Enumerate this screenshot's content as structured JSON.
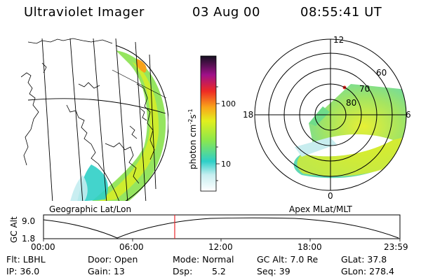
{
  "header": {
    "title": "Ultraviolet Imager",
    "date": "03 Aug 00",
    "time": "08:55:41  UT"
  },
  "panels": {
    "left_caption": "Geographic Lat/Lon",
    "right_caption": "Apex MLat/MLT"
  },
  "colorbar": {
    "label": "photon cm",
    "label_sup1": "-2",
    "label_s": "s",
    "label_sup2": "-1",
    "ticks": [
      "100",
      "10"
    ]
  },
  "polar_plot": {
    "mlt_labels": [
      "12",
      "18",
      "6",
      "0"
    ],
    "mlat_labels": [
      "60",
      "70",
      "80"
    ]
  },
  "altitude_panel": {
    "ylabel": "GC Alt",
    "ytick_top": "9.0",
    "ytick_bottom": "1.8",
    "xticks": [
      "00:00",
      "06:00",
      "12:00",
      "18:00",
      "23:59"
    ],
    "marker_time": "08:55:41"
  },
  "status": {
    "filter": "Flt: LBHL",
    "ip": "IP: 36.0",
    "door": "Door: Open",
    "gain": "Gain: 13",
    "mode": "Mode: Normal",
    "dsp_label": "Dsp:",
    "dsp_value": "5.2",
    "gc_alt": "GC Alt: 7.0 Re",
    "seq": "Seq: 39",
    "glat": "GLat: 37.8",
    "glon": "GLon: 278.4"
  },
  "colors": {
    "marker": "#e8262a",
    "colorbar_stops": [
      "#ffffff",
      "#88dde8",
      "#2ecfc8",
      "#8ee84a",
      "#e2ef1e",
      "#f9a51a",
      "#ee2a24",
      "#a0108a",
      "#141020"
    ]
  }
}
